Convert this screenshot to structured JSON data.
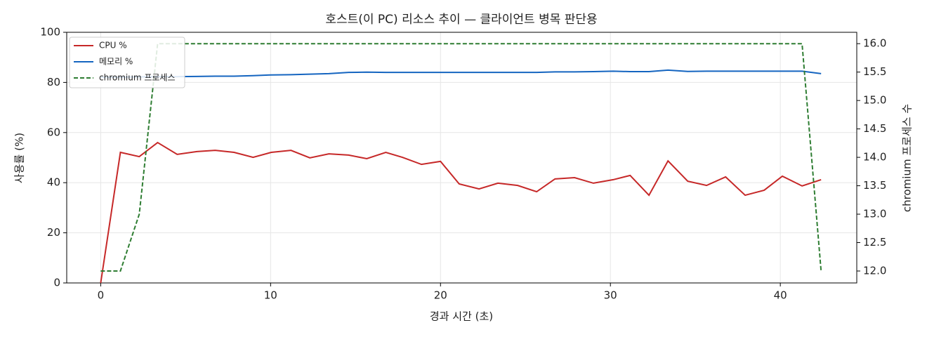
{
  "chart_data": {
    "type": "line",
    "title": "호스트(이 PC) 리소스 추이 — 클라이언트 병목 판단용",
    "x_label": "경과 시간 (초)",
    "y_label": "사용률 (%)",
    "y2_label": "chromium 프로세스 수",
    "x": [
      0,
      1.16,
      2.27,
      3.35,
      4.5,
      5.66,
      6.74,
      7.85,
      8.97,
      10.04,
      11.2,
      12.31,
      13.43,
      14.59,
      15.66,
      16.78,
      17.77,
      18.88,
      20.0,
      21.1,
      22.27,
      23.38,
      24.54,
      25.66,
      26.74,
      27.89,
      29.0,
      30.17,
      31.16,
      32.27,
      33.39,
      34.55,
      35.66,
      36.78,
      37.93,
      39.05,
      40.12,
      41.28,
      42.4
    ],
    "series": [
      {
        "name": "CPU %",
        "color": "#c62828",
        "linestyle": "solid",
        "values": [
          0,
          52.1,
          50.4,
          56.0,
          51.3,
          52.4,
          52.9,
          52.1,
          50.1,
          52.1,
          52.9,
          49.9,
          51.5,
          51.0,
          49.6,
          52.1,
          50.1,
          47.3,
          48.5,
          39.5,
          37.5,
          39.8,
          38.9,
          36.4,
          41.5,
          42.0,
          39.8,
          41.2,
          42.9,
          35.0,
          48.7,
          40.6,
          38.9,
          42.3,
          35.0,
          37.0,
          42.6,
          38.7,
          41.2
        ]
      },
      {
        "name": "메모리 %",
        "color": "#1565c0",
        "linestyle": "solid",
        "values": [
          82.0,
          82.1,
          82.2,
          82.3,
          82.3,
          82.4,
          82.5,
          82.5,
          82.7,
          83.0,
          83.1,
          83.3,
          83.5,
          84.0,
          84.1,
          84.0,
          84.0,
          84.0,
          84.0,
          84.0,
          84.0,
          84.0,
          84.0,
          84.0,
          84.2,
          84.2,
          84.3,
          84.5,
          84.3,
          84.3,
          84.9,
          84.4,
          84.5,
          84.5,
          84.5,
          84.5,
          84.5,
          84.5,
          83.5
        ]
      },
      {
        "name": "chromium 프로세스",
        "color": "#2e7d32",
        "linestyle": "dashed",
        "axis": "y2",
        "values": [
          12,
          12,
          13,
          16,
          16,
          16,
          16,
          16,
          16,
          16,
          16,
          16,
          16,
          16,
          16,
          16,
          16,
          16,
          16,
          16,
          16,
          16,
          16,
          16,
          16,
          16,
          16,
          16,
          16,
          16,
          16,
          16,
          16,
          16,
          16,
          16,
          16,
          16,
          12
        ]
      }
    ],
    "xlim": [
      -2.0,
      44.5
    ],
    "xticks": [
      0,
      10,
      20,
      30,
      40
    ],
    "ylim": [
      0,
      100
    ],
    "yticks": [
      0,
      20,
      40,
      60,
      80,
      100
    ],
    "y2lim": [
      11.79,
      16.2
    ],
    "y2ticks": [
      {
        "value": 12,
        "label": "12.0"
      },
      {
        "value": 12.5,
        "label": "12.5"
      },
      {
        "value": 13,
        "label": "13.0"
      },
      {
        "value": 13.5,
        "label": "13.5"
      },
      {
        "value": 14,
        "label": "14.0"
      },
      {
        "value": 14.5,
        "label": "14.5"
      },
      {
        "value": 15,
        "label": "15.0"
      },
      {
        "value": 15.5,
        "label": "15.5"
      },
      {
        "value": 16,
        "label": "16.0"
      }
    ],
    "grid": true,
    "legend": "upper-left"
  }
}
